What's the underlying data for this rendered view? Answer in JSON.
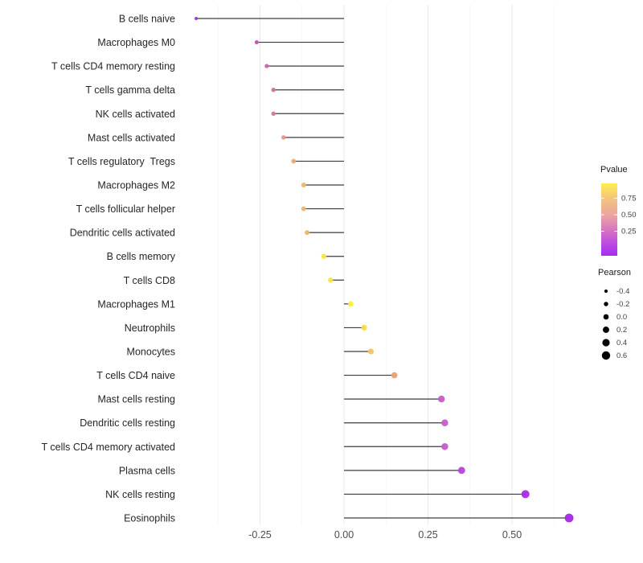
{
  "chart_data": {
    "type": "lollipop",
    "orientation": "horizontal",
    "title": "",
    "xlabel": "",
    "ylabel": "",
    "grid": true,
    "xlim": [
      -0.46,
      0.71
    ],
    "x_ticks": [
      {
        "value": -0.25,
        "label": "-0.25"
      },
      {
        "value": 0.0,
        "label": "0.00"
      },
      {
        "value": 0.25,
        "label": "0.25"
      },
      {
        "value": 0.5,
        "label": "0.50"
      }
    ],
    "x_minor_ticks": [
      -0.375,
      -0.125,
      0.125,
      0.375,
      0.625
    ],
    "categories": [
      "B cells naive",
      "Macrophages M0",
      "T cells CD4 memory resting",
      "T cells gamma delta",
      "NK cells activated",
      "Mast cells activated",
      "T cells regulatory  Tregs",
      "Macrophages M2",
      "T cells follicular helper",
      "Dendritic cells activated",
      "B cells memory",
      "T cells CD8",
      "Macrophages M1",
      "Neutrophils",
      "Monocytes",
      "T cells CD4 naive",
      "Mast cells resting",
      "Dendritic cells resting",
      "T cells CD4 memory activated",
      "Plasma cells",
      "NK cells resting",
      "Eosinophils"
    ],
    "series": [
      {
        "name": "Pearson",
        "values": [
          -0.44,
          -0.26,
          -0.23,
          -0.21,
          -0.21,
          -0.18,
          -0.15,
          -0.12,
          -0.12,
          -0.11,
          -0.06,
          -0.04,
          0.02,
          0.06,
          0.08,
          0.15,
          0.29,
          0.3,
          0.3,
          0.35,
          0.54,
          0.67
        ]
      }
    ],
    "points": [
      {
        "label": "B cells naive",
        "pearson": -0.44,
        "color": "#9a2fdd"
      },
      {
        "label": "Macrophages M0",
        "pearson": -0.26,
        "color": "#c355b8"
      },
      {
        "label": "T cells CD4 memory resting",
        "pearson": -0.23,
        "color": "#cc64ad"
      },
      {
        "label": "T cells gamma delta",
        "pearson": -0.21,
        "color": "#d171a1"
      },
      {
        "label": "NK cells activated",
        "pearson": -0.21,
        "color": "#d2769c"
      },
      {
        "label": "Mast cells activated",
        "pearson": -0.18,
        "color": "#e69a85"
      },
      {
        "label": "T cells regulatory  Tregs",
        "pearson": -0.15,
        "color": "#eca96f"
      },
      {
        "label": "Macrophages M2",
        "pearson": -0.12,
        "color": "#efb46b"
      },
      {
        "label": "T cells follicular helper",
        "pearson": -0.12,
        "color": "#efb56a"
      },
      {
        "label": "Dendritic cells activated",
        "pearson": -0.11,
        "color": "#eeb76c"
      },
      {
        "label": "B cells memory",
        "pearson": -0.06,
        "color": "#f8e73e"
      },
      {
        "label": "T cells CD8",
        "pearson": -0.04,
        "color": "#f8e73e"
      },
      {
        "label": "Macrophages M1",
        "pearson": 0.02,
        "color": "#fbf03c"
      },
      {
        "label": "Neutrophils",
        "pearson": 0.06,
        "color": "#f7da45"
      },
      {
        "label": "Monocytes",
        "pearson": 0.08,
        "color": "#f2c65b"
      },
      {
        "label": "T cells CD4 naive",
        "pearson": 0.15,
        "color": "#eba173"
      },
      {
        "label": "Mast cells resting",
        "pearson": 0.29,
        "color": "#c75ec4"
      },
      {
        "label": "Dendritic cells resting",
        "pearson": 0.3,
        "color": "#c65ec7"
      },
      {
        "label": "T cells CD4 memory activated",
        "pearson": 0.3,
        "color": "#c55dc9"
      },
      {
        "label": "Plasma cells",
        "pearson": 0.35,
        "color": "#b646d7"
      },
      {
        "label": "NK cells resting",
        "pearson": 0.54,
        "color": "#a92ce6"
      },
      {
        "label": "Eosinophils",
        "pearson": 0.67,
        "color": "#a428e8"
      }
    ],
    "legends": {
      "pvalue": {
        "title": "Pvalue",
        "tick_labels": [
          "0.75",
          "0.50",
          "0.25"
        ],
        "gradient_top_to_bottom": [
          {
            "offset": 0.0,
            "color": "#fcee4f"
          },
          {
            "offset": 0.22,
            "color": "#f3c37f"
          },
          {
            "offset": 0.45,
            "color": "#eaa3a2"
          },
          {
            "offset": 0.65,
            "color": "#d573c4"
          },
          {
            "offset": 0.84,
            "color": "#bb4ae3"
          },
          {
            "offset": 1.0,
            "color": "#a62bf0"
          }
        ]
      },
      "pearson": {
        "title": "Pearson",
        "entries": [
          {
            "label": "-0.4",
            "value": -0.4
          },
          {
            "label": "-0.2",
            "value": -0.2
          },
          {
            "label": "0.0",
            "value": 0.0
          },
          {
            "label": "0.2",
            "value": 0.2
          },
          {
            "label": "0.4",
            "value": 0.4
          },
          {
            "label": "0.6",
            "value": 0.6
          }
        ]
      }
    },
    "style": {
      "stem_color": "#3d3d3d",
      "major_grid_color": "#e9e9e9",
      "minor_grid_color": "#f4f4f4",
      "axis_text_color": "#4d4d4d",
      "category_text_color": "#262626",
      "legend_dot_color": "#000000"
    }
  }
}
